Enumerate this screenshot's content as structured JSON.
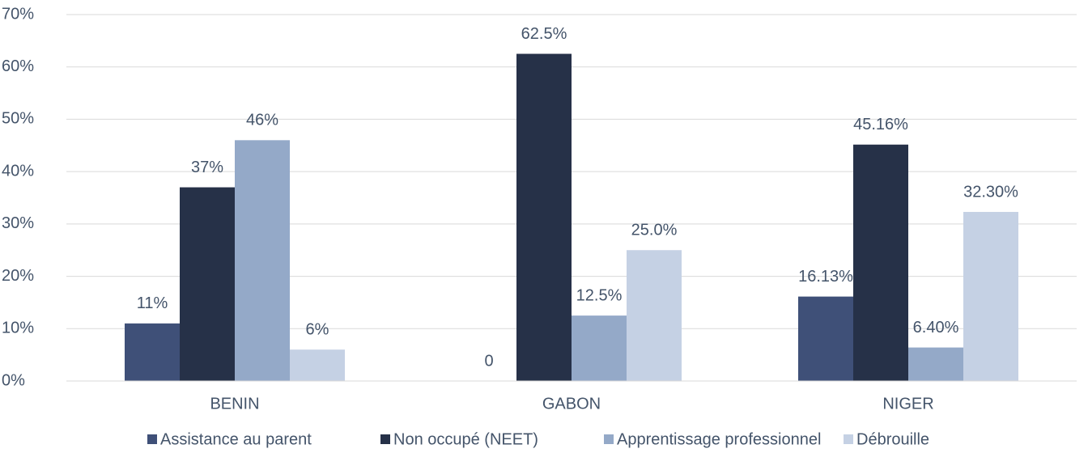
{
  "chart_data": {
    "type": "bar",
    "categories": [
      "BENIN",
      "GABON",
      "NIGER"
    ],
    "series": [
      {
        "name": "Assistance au parent",
        "color": "#3f5078",
        "values": [
          11,
          0,
          16.13
        ],
        "value_labels": [
          "11%",
          "0",
          "16.13%"
        ]
      },
      {
        "name": "Non occupé (NEET)",
        "color": "#263148",
        "values": [
          37,
          62.5,
          45.16
        ],
        "value_labels": [
          "37%",
          "62.5%",
          "45.16%"
        ]
      },
      {
        "name": "Apprentissage professionnel",
        "color": "#94a9c8",
        "values": [
          46,
          12.5,
          6.4
        ],
        "value_labels": [
          "46%",
          "12.5%",
          "6.40%"
        ]
      },
      {
        "name": "Débrouille",
        "color": "#c5d1e4",
        "values": [
          6,
          25.0,
          32.3
        ],
        "value_labels": [
          "6%",
          "25.0%",
          "32.30%"
        ]
      }
    ],
    "ylim": [
      0,
      70
    ],
    "yticks": [
      {
        "value": 0,
        "label": "0%"
      },
      {
        "value": 10,
        "label": "10%"
      },
      {
        "value": 20,
        "label": "20%"
      },
      {
        "value": 30,
        "label": "30%"
      },
      {
        "value": 40,
        "label": "40%"
      },
      {
        "value": 50,
        "label": "50%"
      },
      {
        "value": 60,
        "label": "60%"
      },
      {
        "value": 70,
        "label": "70%"
      }
    ],
    "grid": true,
    "legend": "bottom"
  }
}
